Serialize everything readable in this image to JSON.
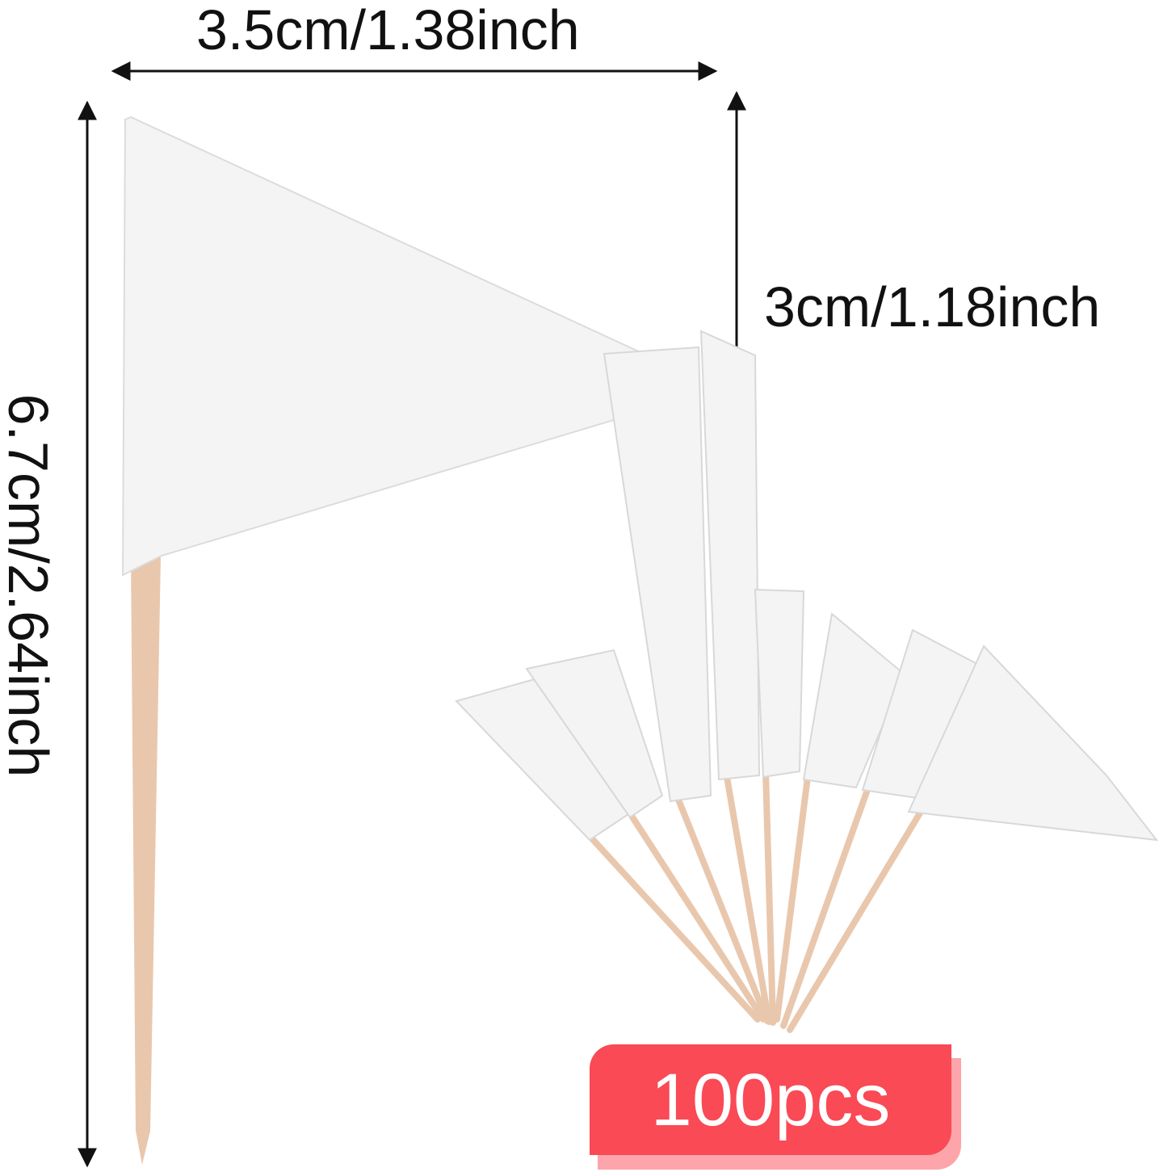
{
  "dimensions": {
    "width_label": "3.5cm/1.38inch",
    "flag_height_label": "3cm/1.18inch",
    "total_length_label": "6.7cm/2.64inch"
  },
  "badge": {
    "label": "100pcs",
    "color": "#f94a55",
    "shadow_color": "#fda5aa"
  },
  "colors": {
    "flag": "#f4f4f4",
    "stick": "#e9c7ad",
    "arrow": "#111111"
  },
  "fan_flag_count": 8
}
